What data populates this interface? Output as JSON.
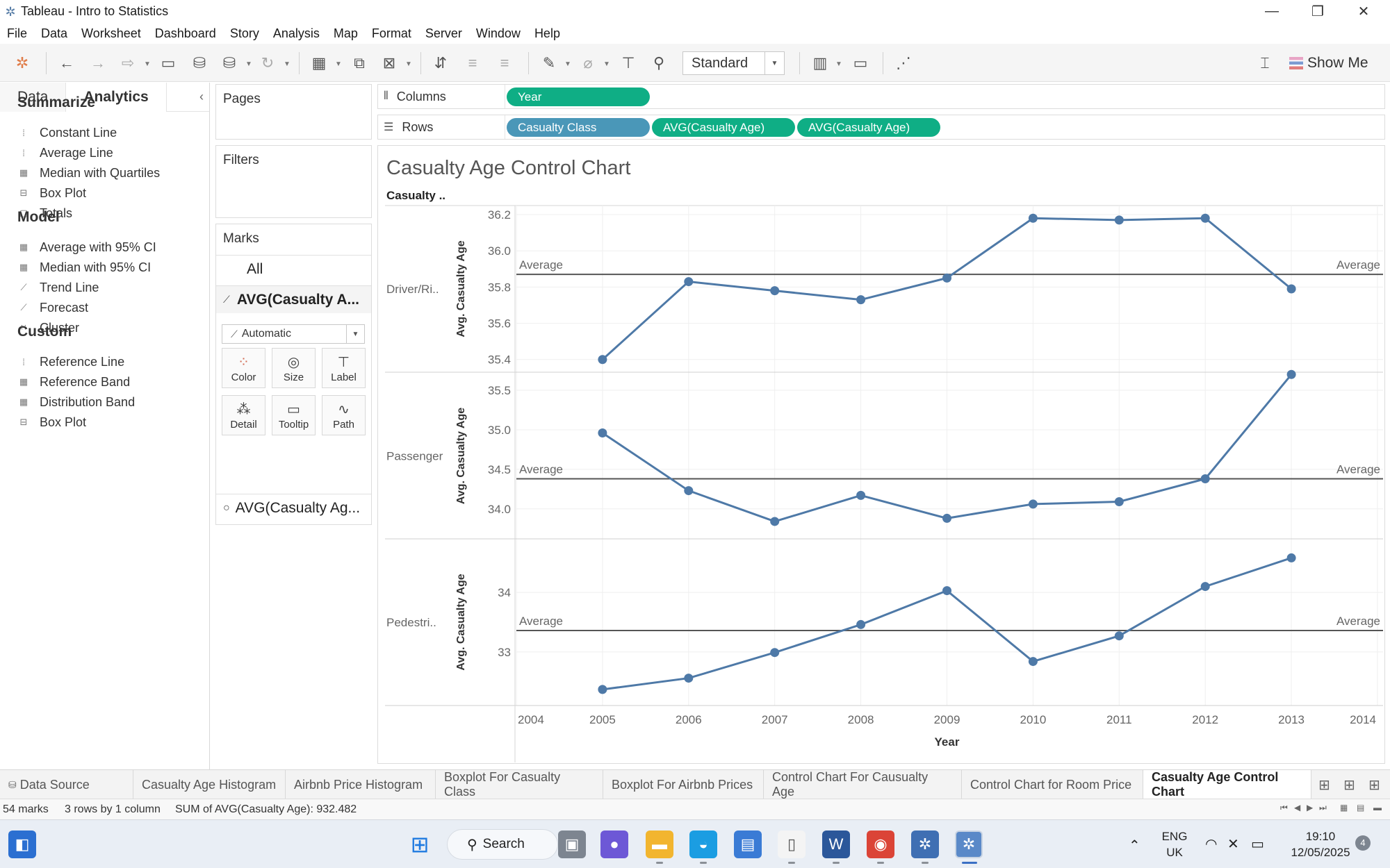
{
  "window": {
    "title": "Tableau - Intro to Statistics",
    "minimize": "—",
    "restore": "❐",
    "close": "✕"
  },
  "menu": [
    "File",
    "Data",
    "Worksheet",
    "Dashboard",
    "Story",
    "Analysis",
    "Map",
    "Format",
    "Server",
    "Window",
    "Help"
  ],
  "toolbar": {
    "fit": "Standard",
    "show_me": "Show Me"
  },
  "left_pane": {
    "tabs": [
      "Data",
      "Analytics"
    ],
    "sections": [
      {
        "title": "Summarize",
        "items": [
          "Constant Line",
          "Average Line",
          "Median with Quartiles",
          "Box Plot",
          "Totals"
        ]
      },
      {
        "title": "Model",
        "items": [
          "Average with 95% CI",
          "Median with 95% CI",
          "Trend Line",
          "Forecast",
          "Cluster"
        ]
      },
      {
        "title": "Custom",
        "items": [
          "Reference Line",
          "Reference Band",
          "Distribution Band",
          "Box Plot"
        ]
      }
    ]
  },
  "cards": {
    "pages": "Pages",
    "filters": "Filters",
    "marks": "Marks",
    "marks_all": "All",
    "marks_avg1": "AVG(Casualty A...",
    "mark_type": "Automatic",
    "mark_buttons": [
      "Color",
      "Size",
      "Label",
      "Detail",
      "Tooltip",
      "Path"
    ],
    "marks_avg2": "AVG(Casualty Ag..."
  },
  "shelves": {
    "columns_label": "Columns",
    "rows_label": "Rows",
    "columns_pills": [
      "Year"
    ],
    "rows_pills": [
      "Casualty Class",
      "AVG(Casualty Age)",
      "AVG(Casualty Age)"
    ]
  },
  "chart_data": {
    "type": "line",
    "title": "Casualty Age Control Chart",
    "row_header": "Casualty ..",
    "xlabel": "Year",
    "ylabel": "Avg. Casualty Age",
    "reference_label": "Average",
    "x_ticks": [
      "2004",
      "2005",
      "2006",
      "2007",
      "2008",
      "2009",
      "2010",
      "2011",
      "2012",
      "2013",
      "2014"
    ],
    "xlim": [
      2004,
      2014
    ],
    "panes": [
      {
        "name": "Driver/Ri..",
        "x": [
          2005,
          2006,
          2007,
          2008,
          2009,
          2010,
          2011,
          2012,
          2013
        ],
        "values": [
          35.4,
          35.83,
          35.78,
          35.73,
          35.85,
          36.18,
          36.17,
          36.18,
          35.79
        ],
        "average": 35.87,
        "ylim": [
          35.33,
          36.25
        ],
        "y_ticks": [
          35.4,
          35.6,
          35.8,
          36.0,
          36.2
        ],
        "y_tick_labels": [
          "35.4",
          "35.6",
          "35.8",
          "36.0",
          "36.2"
        ]
      },
      {
        "name": "Passenger",
        "x": [
          2005,
          2006,
          2007,
          2008,
          2009,
          2010,
          2011,
          2012,
          2013
        ],
        "values": [
          34.96,
          34.23,
          33.84,
          34.17,
          33.88,
          34.06,
          34.09,
          34.38,
          35.7
        ],
        "average": 34.38,
        "ylim": [
          33.62,
          35.72
        ],
        "y_ticks": [
          34.0,
          34.5,
          35.0,
          35.5
        ],
        "y_tick_labels": [
          "34.0",
          "34.5",
          "35.0",
          "35.5"
        ]
      },
      {
        "name": "Pedestri..",
        "x": [
          2005,
          2006,
          2007,
          2008,
          2009,
          2010,
          2011,
          2012,
          2013
        ],
        "values": [
          32.37,
          32.56,
          32.99,
          33.46,
          34.03,
          32.84,
          33.27,
          34.1,
          34.58
        ],
        "average": 33.36,
        "ylim": [
          32.1,
          34.9
        ],
        "y_ticks": [
          33,
          34
        ],
        "y_tick_labels": [
          "33",
          "34"
        ]
      }
    ],
    "line_color": "#4e79a7",
    "ref_line_color": "#555555"
  },
  "sheets": {
    "data_source": "Data Source",
    "tabs": [
      "Casualty Age Histogram",
      "Airbnb Price Histogram",
      "Boxplot For Casualty Class",
      "Boxplot For Airbnb Prices",
      "Control Chart For Causualty Age",
      "Control Chart for Room Price",
      "Casualty Age Control Chart"
    ],
    "active": "Casualty Age Control Chart"
  },
  "status": {
    "marks": "54 marks",
    "dims": "3 rows by 1 column",
    "sum": "SUM of AVG(Casualty Age): 932.482"
  },
  "taskbar": {
    "search": "Search",
    "lang1": "ENG",
    "lang2": "UK",
    "time": "19:10",
    "date": "12/05/2025",
    "badge": "4"
  }
}
